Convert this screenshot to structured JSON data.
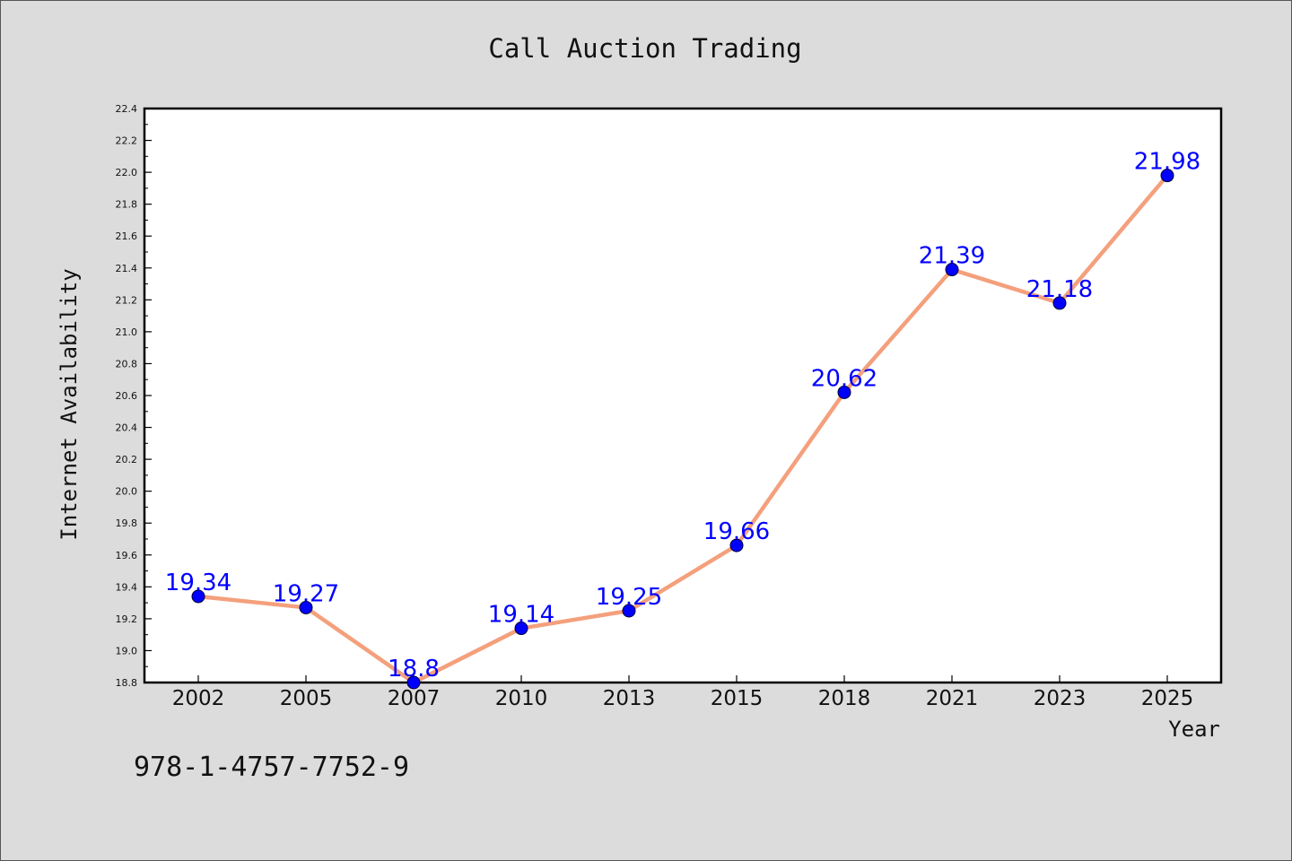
{
  "chart_data": {
    "type": "line",
    "title": "Call Auction Trading",
    "xlabel": "Year",
    "ylabel": "Internet Availability",
    "categories": [
      "2002",
      "2005",
      "2007",
      "2010",
      "2013",
      "2015",
      "2018",
      "2021",
      "2023",
      "2025"
    ],
    "series": [
      {
        "values": [
          19.34,
          19.27,
          18.8,
          19.14,
          19.25,
          19.66,
          20.62,
          21.39,
          21.18,
          21.98
        ],
        "data_labels": [
          "19.34",
          "19.27",
          "18.8",
          "19.14",
          "19.25",
          "19.66",
          "20.62",
          "21.39",
          "21.18",
          "21.98"
        ]
      }
    ],
    "ylim": [
      18.8,
      22.4
    ],
    "yticks": [
      "18.8",
      "19.0",
      "19.2",
      "19.4",
      "19.6",
      "19.8",
      "20.0",
      "20.2",
      "20.4",
      "20.6",
      "20.8",
      "21.0",
      "21.2",
      "21.4",
      "21.6",
      "21.8",
      "22.0",
      "22.2",
      "22.4"
    ],
    "grid": false,
    "colors": {
      "line": "#f4a07c",
      "marker": "#0000ff",
      "label": "#0000ff",
      "background": "#dcdcdc",
      "plot_area": "#ffffff"
    }
  },
  "annotation": {
    "code": "978-1-4757-7752-9"
  }
}
